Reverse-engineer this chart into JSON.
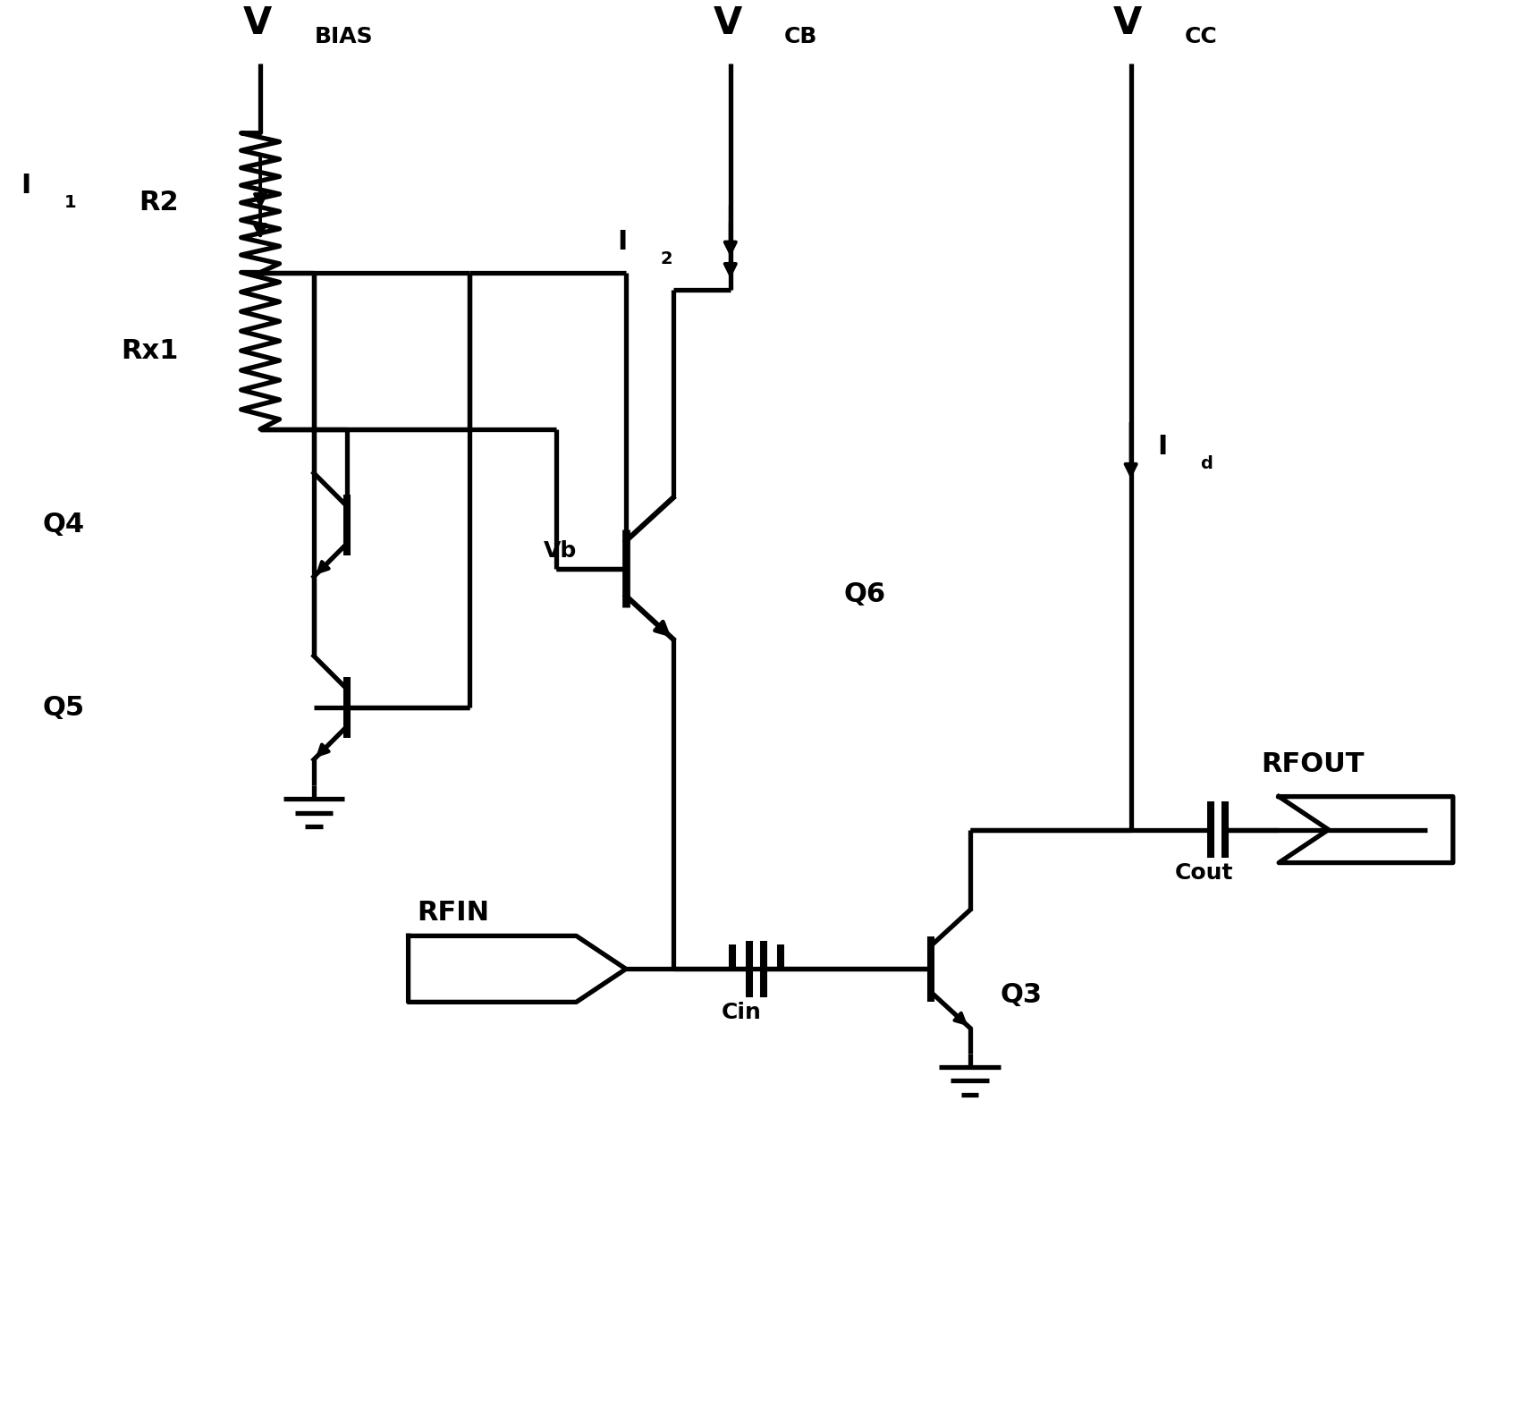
{
  "bg": "#ffffff",
  "lc": "#000000",
  "lw": 3.8,
  "fig_w": 16.92,
  "fig_h": 15.91,
  "xlim": [
    0,
    17
  ],
  "ylim": [
    0,
    16
  ]
}
